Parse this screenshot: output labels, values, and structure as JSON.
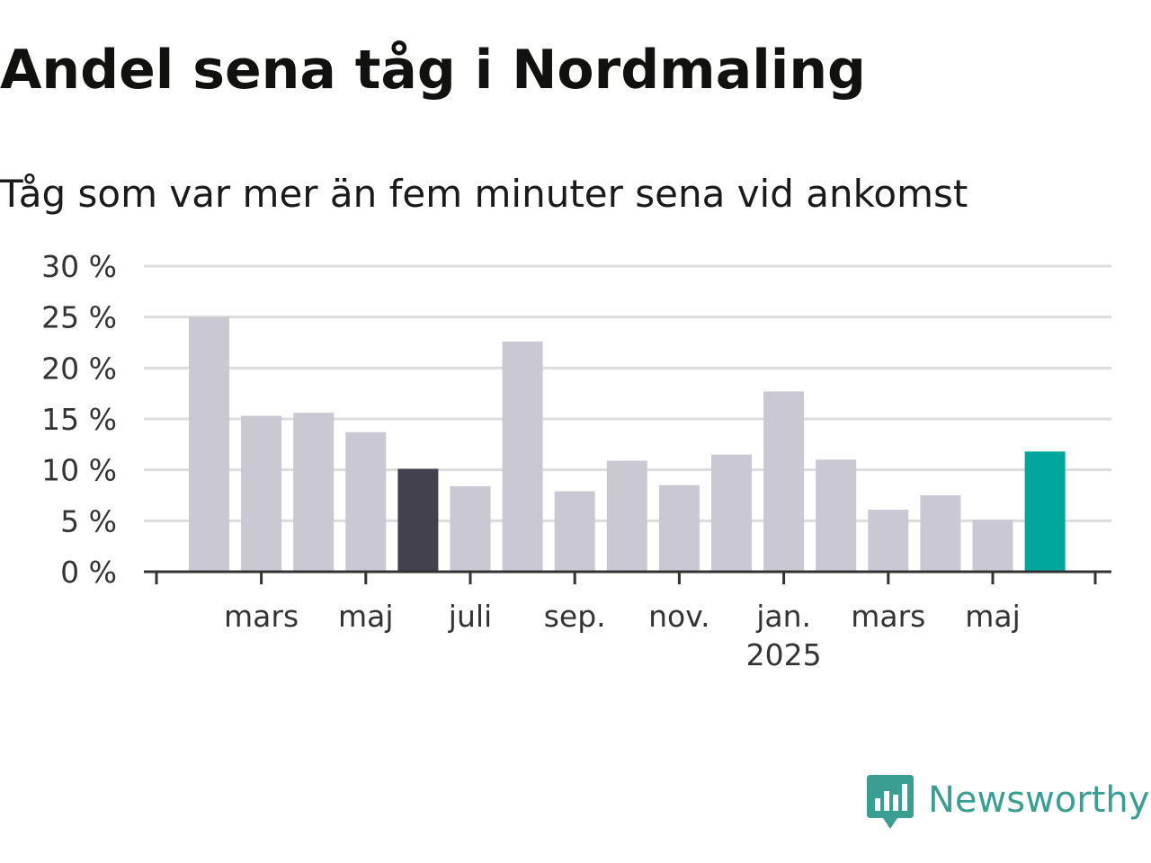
{
  "header": {
    "title": "Andel sena tåg i Nordmaling",
    "subtitle": "Tåg som var mer än fem minuter sena vid ankomst"
  },
  "brand": {
    "name": "Newsworthy",
    "color": "#3a9e93"
  },
  "colors": {
    "default_bar": "#c9c8d3",
    "highlight_bar": "#43414e",
    "latest_bar": "#00a59b",
    "grid": "#dcdcdc",
    "axis": "#333333"
  },
  "chart_data": {
    "type": "bar",
    "categories": [
      "2024-02",
      "2024-03",
      "2024-04",
      "2024-05",
      "2024-06",
      "2024-07",
      "2024-08",
      "2024-09",
      "2024-10",
      "2024-11",
      "2024-12",
      "2025-01",
      "2025-02",
      "2025-03",
      "2025-04",
      "2025-05",
      "2025-06"
    ],
    "values": [
      25.0,
      15.3,
      15.6,
      13.7,
      10.1,
      8.4,
      22.6,
      7.9,
      10.9,
      8.5,
      11.5,
      17.7,
      11.0,
      6.1,
      7.5,
      5.1,
      11.8
    ],
    "bar_styles": [
      "default",
      "default",
      "default",
      "default",
      "highlight",
      "default",
      "default",
      "default",
      "default",
      "default",
      "default",
      "default",
      "default",
      "default",
      "default",
      "default",
      "latest"
    ],
    "ylim": [
      0,
      30
    ],
    "yticks": [
      0,
      5,
      10,
      15,
      20,
      25,
      30
    ],
    "ytick_labels": [
      "0 %",
      "5 %",
      "10 %",
      "15 %",
      "20 %",
      "25 %",
      "30 %"
    ],
    "xtick_labels": [
      {
        "index": 1,
        "label": "mars",
        "sub": ""
      },
      {
        "index": 3,
        "label": "maj",
        "sub": ""
      },
      {
        "index": 5,
        "label": "juli",
        "sub": ""
      },
      {
        "index": 7,
        "label": "sep.",
        "sub": ""
      },
      {
        "index": 9,
        "label": "nov.",
        "sub": ""
      },
      {
        "index": 11,
        "label": "jan.",
        "sub": "2025"
      },
      {
        "index": 13,
        "label": "mars",
        "sub": ""
      },
      {
        "index": 15,
        "label": "maj",
        "sub": ""
      }
    ],
    "xlabel": "",
    "ylabel": "",
    "grid": true,
    "legend": "none"
  }
}
